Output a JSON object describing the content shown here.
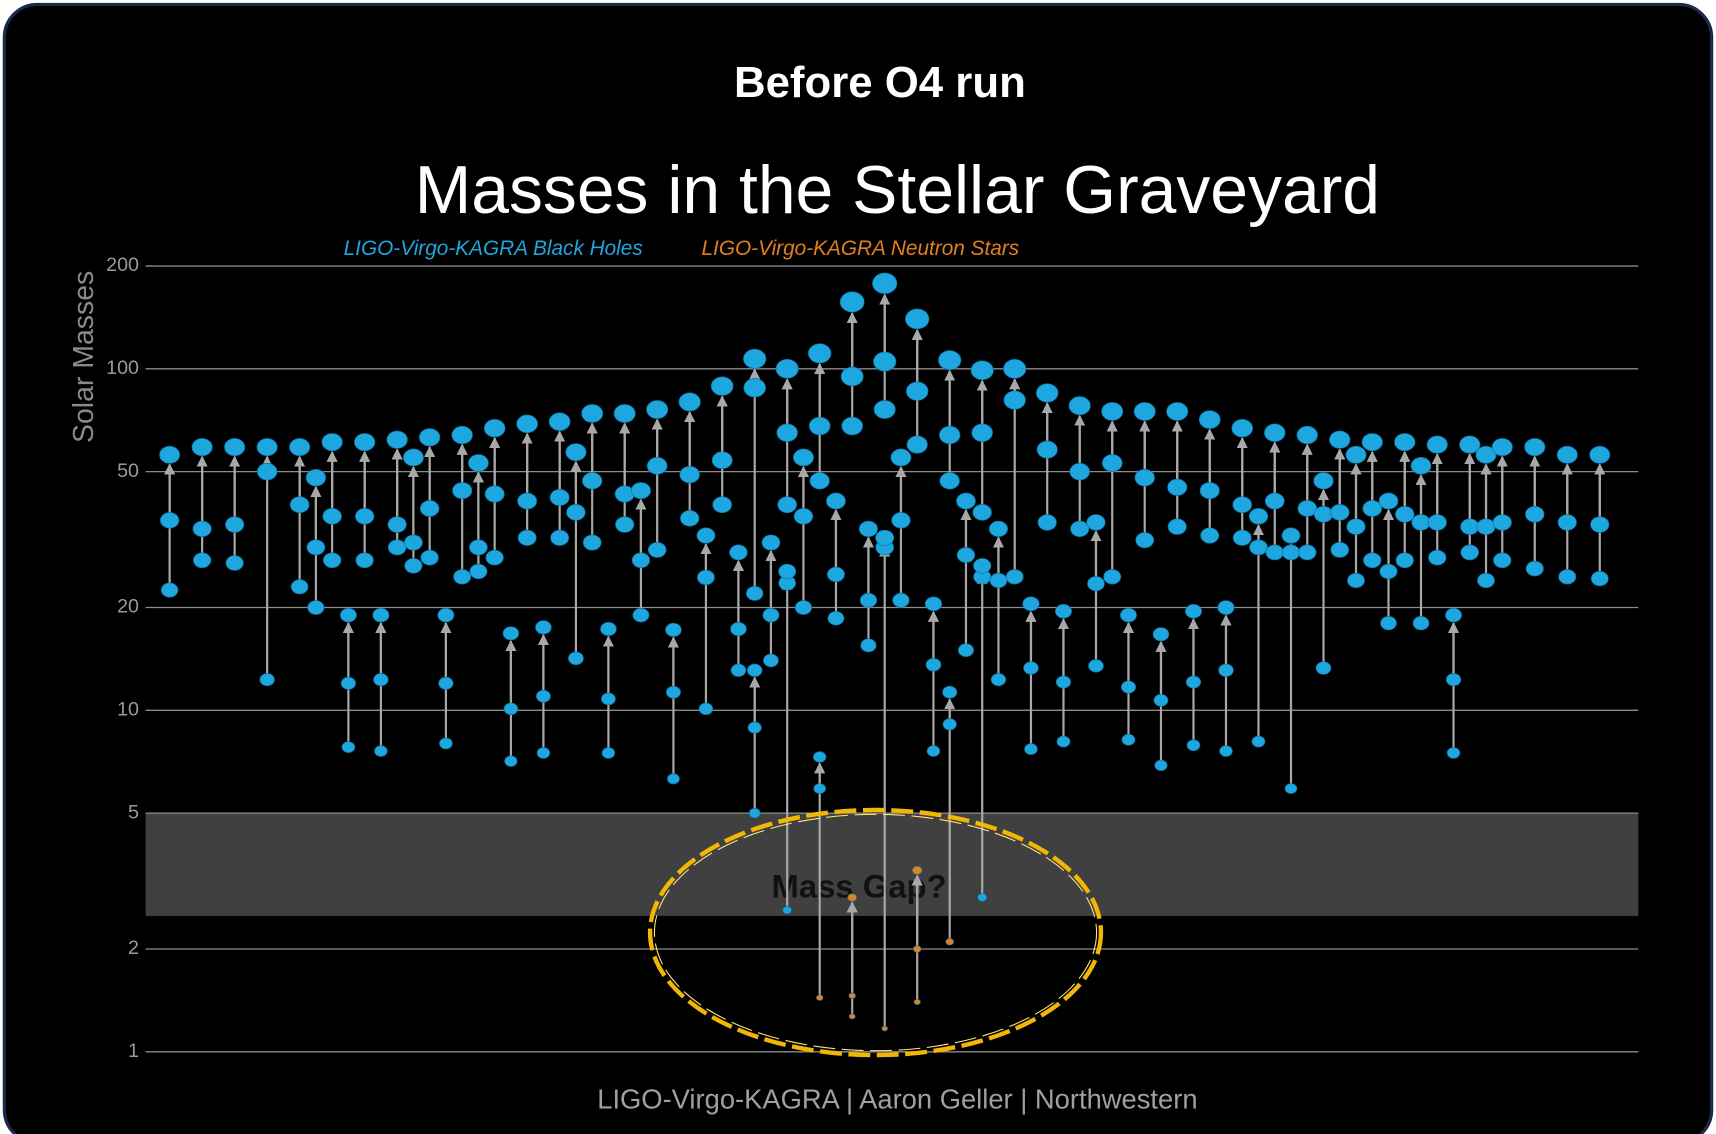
{
  "header": {
    "title": "Before O4 run"
  },
  "chart_data": {
    "type": "graveyard",
    "title": "Masses in the Stellar Graveyard",
    "ylabel": "Solar Masses",
    "credit": "LIGO-Virgo-KAGRA | Aaron Geller | Northwestern",
    "log_y": true,
    "grid": true,
    "ylim": [
      1,
      200
    ],
    "yticks": [
      1,
      2,
      5,
      10,
      20,
      50,
      100,
      200
    ],
    "mass_gap": {
      "range": [
        2.5,
        5
      ],
      "label": "Mass Gap?"
    },
    "series": [
      {
        "name": "LIGO-Virgo-KAGRA Black Holes",
        "color": "#1ea6df"
      },
      {
        "name": "LIGO-Virgo-KAGRA Neutron Stars",
        "color": "#e0801e"
      }
    ],
    "columns": [
      [
        {
          "masses": [
            36,
            22.5,
            56
          ]
        }
      ],
      null,
      [
        {
          "masses": [
            34,
            27.5,
            59
          ]
        }
      ],
      null,
      [
        {
          "masses": [
            35,
            27,
            59
          ]
        }
      ],
      null,
      [
        {
          "masses": [
            50,
            12.3,
            59
          ]
        }
      ],
      null,
      [
        {
          "masses": [
            40,
            23,
            59
          ]
        }
      ],
      [
        {
          "masses": [
            30,
            20,
            48
          ]
        }
      ],
      [
        {
          "masses": [
            37,
            27.5,
            61
          ]
        }
      ],
      [
        {
          "masses": [
            12,
            7.8,
            19
          ]
        }
      ],
      [
        {
          "masses": [
            37,
            27.5,
            61
          ]
        }
      ],
      [
        {
          "masses": [
            12.3,
            7.6,
            19
          ]
        }
      ],
      [
        {
          "masses": [
            35,
            30,
            62
          ]
        }
      ],
      [
        {
          "masses": [
            31,
            26.5,
            55
          ]
        }
      ],
      [
        {
          "masses": [
            39,
            28,
            63
          ]
        }
      ],
      [
        {
          "masses": [
            12,
            8,
            19
          ]
        }
      ],
      [
        {
          "masses": [
            44,
            24.6,
            64
          ]
        }
      ],
      [
        {
          "masses": [
            30,
            25.5,
            53
          ]
        }
      ],
      [
        {
          "masses": [
            43,
            28,
            67
          ]
        }
      ],
      [
        {
          "masses": [
            10.1,
            7.1,
            16.8
          ]
        }
      ],
      [
        {
          "masses": [
            41,
            32,
            69
          ]
        }
      ],
      [
        {
          "masses": [
            11,
            7.5,
            17.5
          ]
        }
      ],
      [
        {
          "masses": [
            42,
            32,
            70
          ]
        }
      ],
      [
        {
          "masses": [
            38,
            14.2,
            57
          ]
        }
      ],
      [
        {
          "masses": [
            47,
            31,
            74
          ]
        }
      ],
      [
        {
          "masses": [
            10.8,
            7.5,
            17.3
          ]
        }
      ],
      [
        {
          "masses": [
            43,
            35,
            74
          ]
        }
      ],
      [
        {
          "masses": [
            27.5,
            19,
            44
          ]
        }
      ],
      [
        {
          "masses": [
            52,
            29.5,
            76
          ]
        }
      ],
      [
        {
          "masses": [
            11.3,
            6.3,
            17.2
          ]
        }
      ],
      [
        {
          "masses": [
            49,
            36.5,
            80
          ]
        }
      ],
      [
        {
          "masses": [
            24.5,
            10.1,
            32.5
          ]
        }
      ],
      [
        {
          "masses": [
            54,
            40,
            89
          ]
        }
      ],
      [
        {
          "masses": [
            17.3,
            13.1,
            29
          ]
        }
      ],
      [
        {
          "masses": [
            88,
            22,
            107
          ]
        },
        {
          "masses": [
            8.9,
            5,
            13.1
          ]
        }
      ],
      [
        {
          "masses": [
            19,
            14,
            31
          ]
        }
      ],
      [
        {
          "masses": [
            65,
            40,
            100
          ]
        },
        {
          "masses": [
            23.6,
            2.6,
            25.5
          ]
        }
      ],
      [
        {
          "masses": [
            37,
            20,
            55
          ]
        }
      ],
      [
        {
          "masses": [
            68,
            47,
            111
          ]
        },
        {
          "masses": [
            5.9,
            1.44,
            7.3
          ],
          "kinds": [
            0,
            1,
            0
          ]
        }
      ],
      [
        {
          "masses": [
            25,
            18.6,
            41
          ]
        }
      ],
      [
        {
          "masses": [
            95,
            68,
            157
          ]
        },
        {
          "masses": [
            1.46,
            1.27,
            2.83
          ],
          "kinds": [
            1,
            1,
            1
          ]
        }
      ],
      [
        {
          "masses": [
            21,
            15.5,
            34
          ]
        }
      ],
      [
        {
          "masses": [
            105,
            76,
            178
          ]
        },
        {
          "masses": [
            30,
            1.17,
            32
          ],
          "kinds": [
            0,
            1,
            0
          ]
        }
      ],
      [
        {
          "masses": [
            36,
            21,
            55
          ]
        }
      ],
      [
        {
          "masses": [
            86,
            60,
            140
          ]
        },
        {
          "masses": [
            2.0,
            1.4,
            3.4
          ],
          "kinds": [
            1,
            1,
            1
          ]
        }
      ],
      [
        {
          "masses": [
            13.6,
            7.6,
            20.5
          ]
        }
      ],
      [
        {
          "masses": [
            64,
            47,
            106
          ]
        },
        {
          "masses": [
            9.1,
            2.1,
            11.3
          ],
          "kinds": [
            0,
            1,
            0
          ]
        }
      ],
      [
        {
          "masses": [
            28.5,
            15,
            41
          ]
        }
      ],
      [
        {
          "masses": [
            65,
            38,
            99
          ]
        },
        {
          "masses": [
            24.6,
            2.83,
            26.5
          ]
        }
      ],
      [
        {
          "masses": [
            24,
            12.3,
            34
          ]
        }
      ],
      [
        {
          "masses": [
            81,
            24.6,
            100
          ]
        }
      ],
      [
        {
          "masses": [
            13.3,
            7.7,
            20.5
          ]
        }
      ],
      [
        {
          "masses": [
            58,
            35.5,
            85
          ]
        }
      ],
      [
        {
          "masses": [
            12.1,
            8.1,
            19.5
          ]
        }
      ],
      [
        {
          "masses": [
            50,
            34,
            78
          ]
        }
      ],
      [
        {
          "masses": [
            23.5,
            13.5,
            35.5
          ]
        }
      ],
      [
        {
          "masses": [
            53,
            24.6,
            75
          ]
        }
      ],
      [
        {
          "masses": [
            11.7,
            8.2,
            19
          ]
        }
      ],
      [
        {
          "masses": [
            48,
            31.5,
            75
          ]
        }
      ],
      [
        {
          "masses": [
            10.7,
            6.9,
            16.7
          ]
        }
      ],
      [
        {
          "masses": [
            45,
            34.5,
            75
          ]
        }
      ],
      [
        {
          "masses": [
            12.1,
            7.9,
            19.5
          ]
        }
      ],
      [
        {
          "masses": [
            44,
            32.5,
            71
          ]
        }
      ],
      [
        {
          "masses": [
            13.1,
            7.6,
            20
          ]
        }
      ],
      [
        {
          "masses": [
            40,
            32,
            67
          ]
        }
      ],
      [
        {
          "masses": [
            30,
            8.1,
            37
          ]
        }
      ],
      [
        {
          "masses": [
            41,
            29,
            65
          ]
        }
      ],
      [
        {
          "masses": [
            29,
            5.9,
            32.5
          ]
        }
      ],
      [
        {
          "masses": [
            39,
            29,
            64
          ]
        }
      ],
      [
        {
          "masses": [
            37.5,
            13.3,
            47
          ]
        }
      ],
      [
        {
          "masses": [
            38,
            29.5,
            62
          ]
        }
      ],
      [
        {
          "masses": [
            34.5,
            24,
            56
          ]
        }
      ],
      [
        {
          "masses": [
            39,
            27.5,
            61
          ]
        }
      ],
      [
        {
          "masses": [
            25.5,
            18,
            41
          ]
        }
      ],
      [
        {
          "masses": [
            37.5,
            27.5,
            61
          ]
        }
      ],
      [
        {
          "masses": [
            35.5,
            18,
            52
          ]
        }
      ],
      [
        {
          "masses": [
            35.5,
            28,
            60
          ]
        }
      ],
      [
        {
          "masses": [
            12.3,
            7.5,
            19
          ]
        }
      ],
      [
        {
          "masses": [
            34.5,
            29,
            60
          ]
        }
      ],
      [
        {
          "masses": [
            34.5,
            24,
            56
          ]
        }
      ],
      [
        {
          "masses": [
            35.5,
            27.5,
            59
          ]
        }
      ],
      null,
      [
        {
          "masses": [
            37.5,
            26,
            59
          ]
        }
      ],
      null,
      [
        {
          "masses": [
            35.5,
            24.6,
            56
          ]
        }
      ],
      null,
      [
        {
          "masses": [
            35,
            24.3,
            56
          ]
        }
      ]
    ]
  }
}
